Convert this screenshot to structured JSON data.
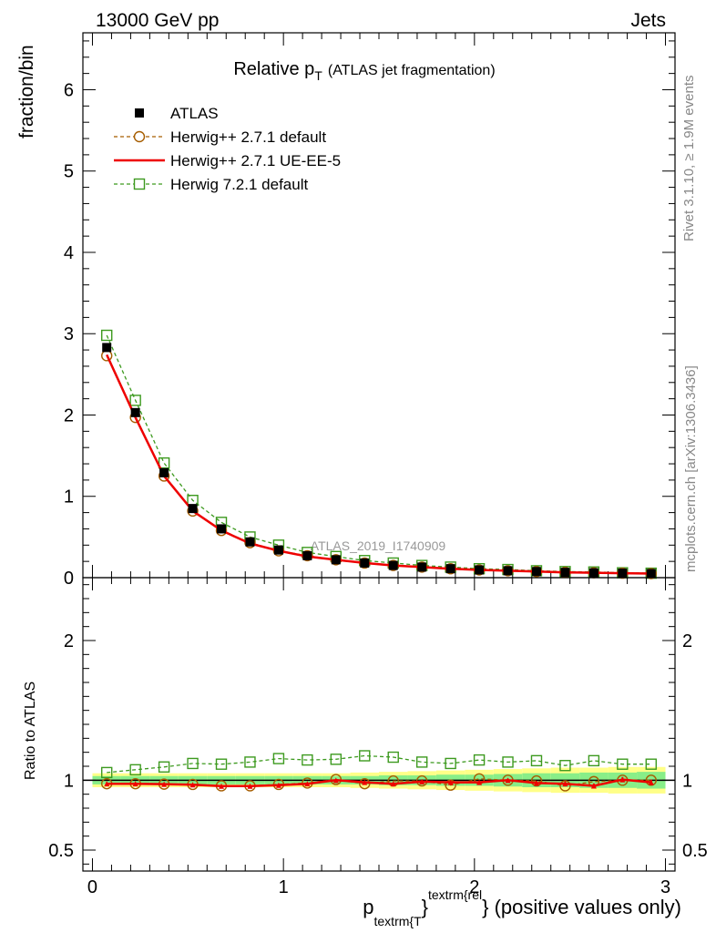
{
  "header": {
    "left_label": "13000 GeV pp",
    "right_label": "Jets"
  },
  "side_labels": {
    "rivet": "Rivet 3.1.10, ≥ 1.9M events",
    "mcplots": "mcplots.cern.ch [arXiv:1306.3436]"
  },
  "watermark": "ATLAS_2019_I1740909",
  "chart_data": [
    {
      "type": "scatter",
      "title": "Relative p",
      "title_subscript": "T",
      "title_suffix": "(ATLAS jet fragmentation)",
      "ylabel": "fraction/bin",
      "xlim": [
        -0.05,
        3.05
      ],
      "ylim": [
        0,
        6.7
      ],
      "yticks": [
        0,
        1,
        2,
        3,
        4,
        5,
        6
      ],
      "x": [
        0.075,
        0.225,
        0.375,
        0.525,
        0.675,
        0.825,
        0.975,
        1.125,
        1.275,
        1.425,
        1.575,
        1.725,
        1.875,
        2.025,
        2.175,
        2.325,
        2.475,
        2.625,
        2.775,
        2.925
      ],
      "legend_position": "top-left",
      "series": [
        {
          "name": "ATLAS",
          "style": "data",
          "color": "#000000",
          "values": [
            2.83,
            2.03,
            1.29,
            0.85,
            0.6,
            0.44,
            0.34,
            0.27,
            0.22,
            0.18,
            0.15,
            0.13,
            0.11,
            0.095,
            0.085,
            0.075,
            0.065,
            0.06,
            0.055,
            0.05
          ]
        },
        {
          "name": "Herwig++ 2.7.1 default",
          "style": "circle-dashed",
          "color": "#a65d00",
          "values": [
            2.73,
            1.97,
            1.25,
            0.82,
            0.58,
            0.43,
            0.33,
            0.27,
            0.22,
            0.18,
            0.15,
            0.13,
            0.11,
            0.095,
            0.085,
            0.075,
            0.065,
            0.06,
            0.055,
            0.05
          ]
        },
        {
          "name": "Herwig++ 2.7.1 UE-EE-5",
          "style": "solid",
          "color": "#ee0000",
          "values": [
            2.74,
            1.97,
            1.25,
            0.82,
            0.58,
            0.42,
            0.33,
            0.26,
            0.22,
            0.18,
            0.15,
            0.13,
            0.11,
            0.095,
            0.085,
            0.075,
            0.065,
            0.06,
            0.055,
            0.05
          ]
        },
        {
          "name": "Herwig 7.2.1 default",
          "style": "square-dashed",
          "color": "#3d9a1f",
          "values": [
            2.98,
            2.18,
            1.41,
            0.95,
            0.68,
            0.5,
            0.4,
            0.31,
            0.26,
            0.21,
            0.18,
            0.15,
            0.13,
            0.11,
            0.1,
            0.085,
            0.075,
            0.07,
            0.06,
            0.055
          ]
        }
      ]
    },
    {
      "type": "scatter",
      "ylabel": "Ratio to ATLAS",
      "xlabel_main": "p",
      "xlabel_sub": "textrm{T",
      "xlabel_sup": "textrm{rel",
      "xlabel_mid": "}",
      "xlabel_suffix": "} (positive values only)",
      "xlim": [
        -0.05,
        3.05
      ],
      "ylim": [
        0.35,
        2.45
      ],
      "ytick_values": [
        0.5,
        1,
        2
      ],
      "ytick_labels": [
        "0.5",
        "1",
        "2"
      ],
      "xtick_values": [
        0,
        1,
        2,
        3
      ],
      "xtick_labels": [
        "0",
        "1",
        "2",
        "3"
      ],
      "x": [
        0.075,
        0.225,
        0.375,
        0.525,
        0.675,
        0.825,
        0.975,
        1.125,
        1.275,
        1.425,
        1.575,
        1.725,
        1.875,
        2.025,
        2.175,
        2.325,
        2.475,
        2.625,
        2.775,
        2.925
      ],
      "band_green": [
        0.03,
        0.03,
        0.03,
        0.03,
        0.03,
        0.03,
        0.03,
        0.03,
        0.03,
        0.03,
        0.035,
        0.035,
        0.04,
        0.04,
        0.045,
        0.05,
        0.05,
        0.055,
        0.055,
        0.06
      ],
      "band_yellow": [
        0.05,
        0.05,
        0.05,
        0.05,
        0.05,
        0.05,
        0.05,
        0.05,
        0.05,
        0.055,
        0.06,
        0.065,
        0.07,
        0.075,
        0.08,
        0.085,
        0.09,
        0.09,
        0.095,
        0.095
      ],
      "series": [
        {
          "name": "Herwig++ 2.7.1 default",
          "style": "circle-dashed",
          "color": "#a65d00",
          "values": [
            0.975,
            0.975,
            0.972,
            0.97,
            0.96,
            0.96,
            0.97,
            0.98,
            1.005,
            0.975,
            0.995,
            0.995,
            0.965,
            1.01,
            1.0,
            0.995,
            0.96,
            0.99,
            1.0,
            1.0
          ]
        },
        {
          "name": "Herwig++ 2.7.1 UE-EE-5",
          "style": "solid",
          "color": "#ee0000",
          "values": [
            0.975,
            0.975,
            0.972,
            0.968,
            0.958,
            0.958,
            0.965,
            0.975,
            1.0,
            0.985,
            0.975,
            0.99,
            0.985,
            0.985,
            1.0,
            0.98,
            0.975,
            0.96,
            1.005,
            0.985
          ],
          "errors": [
            0.003,
            0.003,
            0.003,
            0.003,
            0.003,
            0.003,
            0.004,
            0.004,
            0.005,
            0.006,
            0.007,
            0.008,
            0.009,
            0.01,
            0.012,
            0.014,
            0.015,
            0.017,
            0.018,
            0.02
          ]
        },
        {
          "name": "Herwig 7.2.1 default",
          "style": "square-dashed",
          "color": "#3d9a1f",
          "values": [
            1.055,
            1.075,
            1.095,
            1.12,
            1.115,
            1.13,
            1.155,
            1.145,
            1.15,
            1.175,
            1.165,
            1.13,
            1.12,
            1.145,
            1.13,
            1.14,
            1.105,
            1.14,
            1.115,
            1.115
          ]
        }
      ]
    }
  ]
}
